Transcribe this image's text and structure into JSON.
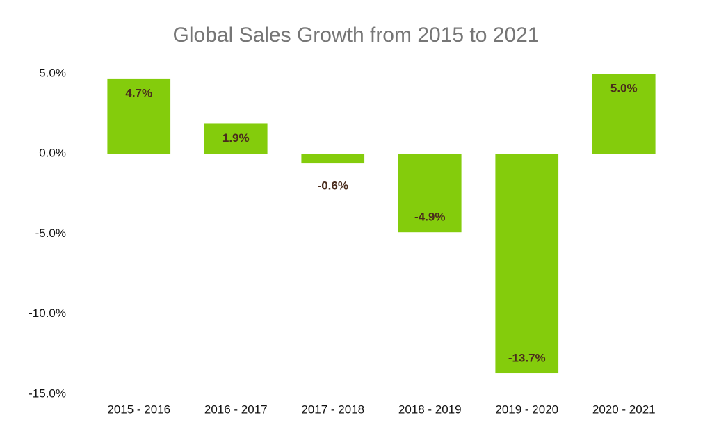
{
  "chart_data": {
    "type": "bar",
    "title": "Global Sales Growth from 2015 to 2021",
    "categories": [
      "2015 - 2016",
      "2016 - 2017",
      "2017 - 2018",
      "2018 - 2019",
      "2019 - 2020",
      "2020 - 2021"
    ],
    "values": [
      4.7,
      1.9,
      -0.6,
      -4.9,
      -13.7,
      5.0
    ],
    "value_labels": [
      "4.7%",
      "1.9%",
      "-0.6%",
      "-4.9%",
      "-13.7%",
      "5.0%"
    ],
    "color": "#84cc0c",
    "ylim": [
      -15,
      5
    ],
    "yticks": [
      {
        "value": 5,
        "label": "5.0%"
      },
      {
        "value": 0,
        "label": "0.0%"
      },
      {
        "value": -5,
        "label": "-5.0%"
      },
      {
        "value": -10,
        "label": "-10.0%"
      },
      {
        "value": -15,
        "label": "-15.0%"
      }
    ],
    "grid": false
  }
}
